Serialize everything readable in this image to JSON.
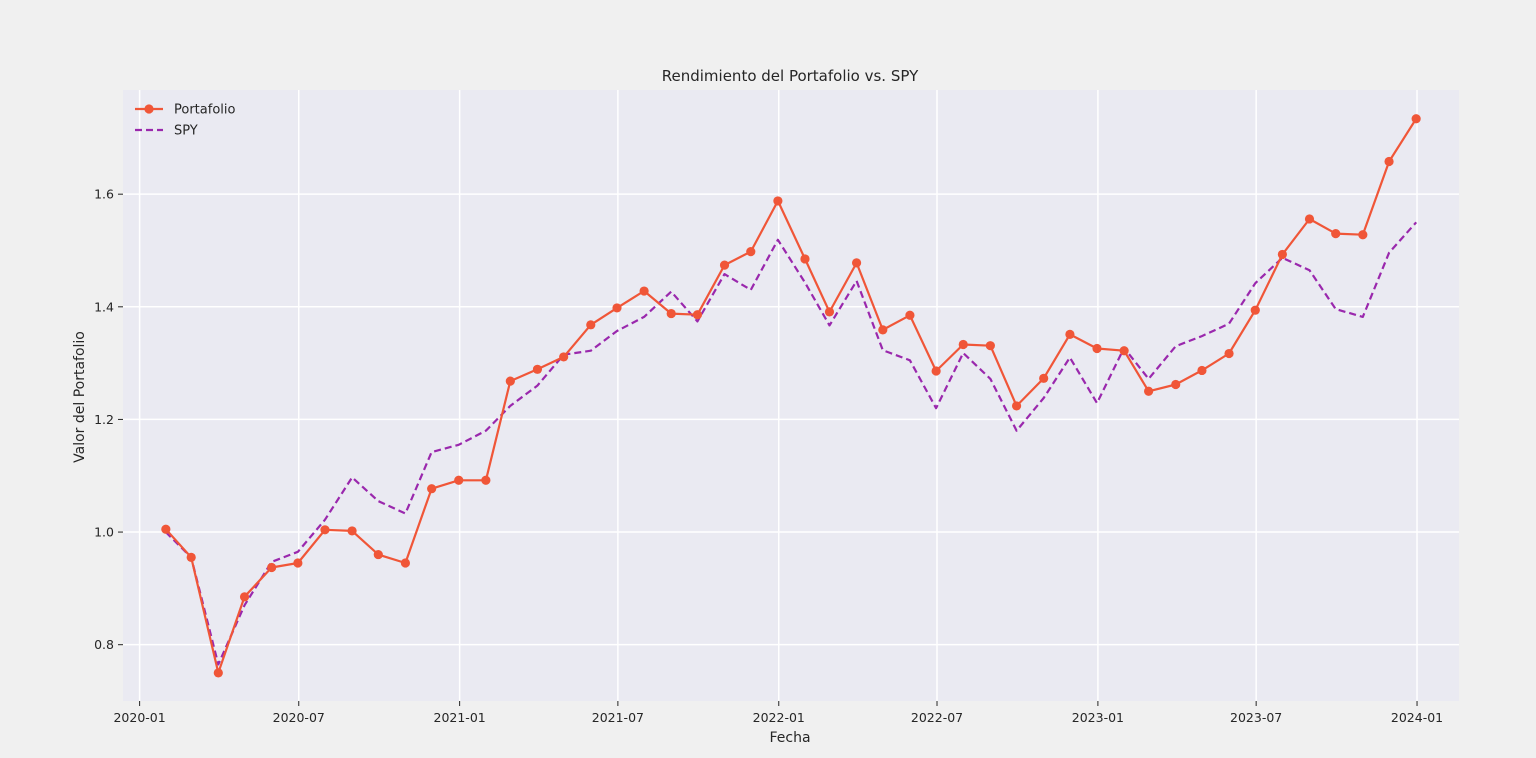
{
  "chart_data": {
    "type": "line",
    "title": "Rendimiento del Portafolio vs. SPY",
    "xlabel": "Fecha",
    "ylabel": "Valor del Portafolio",
    "legend_placement": "top-left",
    "grid": true,
    "xlim": [
      "2019-12-13",
      "2024-02-18"
    ],
    "ylim": [
      0.7,
      1.785
    ],
    "x_ticks": [
      "2020-01",
      "2020-07",
      "2021-01",
      "2021-07",
      "2022-01",
      "2022-07",
      "2023-01",
      "2023-07",
      "2024-01"
    ],
    "y_ticks": [
      "0.8",
      "1.0",
      "1.2",
      "1.4",
      "1.6"
    ],
    "x": [
      "2020-01-31",
      "2020-02-29",
      "2020-03-31",
      "2020-04-30",
      "2020-05-31",
      "2020-06-30",
      "2020-07-31",
      "2020-08-31",
      "2020-09-30",
      "2020-10-31",
      "2020-11-30",
      "2020-12-31",
      "2021-01-31",
      "2021-02-28",
      "2021-03-31",
      "2021-04-30",
      "2021-05-31",
      "2021-06-30",
      "2021-07-31",
      "2021-08-31",
      "2021-09-30",
      "2021-10-31",
      "2021-11-30",
      "2021-12-31",
      "2022-01-31",
      "2022-02-28",
      "2022-03-31",
      "2022-04-30",
      "2022-05-31",
      "2022-06-30",
      "2022-07-31",
      "2022-08-31",
      "2022-09-30",
      "2022-10-31",
      "2022-11-30",
      "2022-12-31",
      "2023-01-31",
      "2023-02-28",
      "2023-03-31",
      "2023-04-30",
      "2023-05-31",
      "2023-06-30",
      "2023-07-31",
      "2023-08-31",
      "2023-09-30",
      "2023-10-31",
      "2023-11-30",
      "2023-12-31"
    ],
    "series": [
      {
        "name": "Portafolio",
        "color": "#f05638",
        "style": "solid-marker",
        "values": [
          1.005,
          0.955,
          0.75,
          0.885,
          0.937,
          0.945,
          1.004,
          1.002,
          0.96,
          0.945,
          1.077,
          1.092,
          1.092,
          1.268,
          1.289,
          1.311,
          1.368,
          1.398,
          1.428,
          1.388,
          1.386,
          1.474,
          1.498,
          1.588,
          1.485,
          1.391,
          1.478,
          1.359,
          1.385,
          1.286,
          1.333,
          1.331,
          1.224,
          1.273,
          1.351,
          1.326,
          1.322,
          1.25,
          1.262,
          1.287,
          1.317,
          1.394,
          1.493,
          1.556,
          1.53,
          1.528,
          1.658,
          1.734
        ]
      },
      {
        "name": "SPY",
        "color": "#9a28ad",
        "style": "dashed",
        "values": [
          1.0,
          0.955,
          0.765,
          0.87,
          0.947,
          0.965,
          1.022,
          1.097,
          1.055,
          1.033,
          1.142,
          1.155,
          1.18,
          1.224,
          1.26,
          1.315,
          1.322,
          1.357,
          1.382,
          1.427,
          1.374,
          1.458,
          1.43,
          1.519,
          1.443,
          1.367,
          1.446,
          1.323,
          1.305,
          1.22,
          1.318,
          1.272,
          1.18,
          1.238,
          1.31,
          1.229,
          1.327,
          1.272,
          1.33,
          1.348,
          1.37,
          1.442,
          1.487,
          1.465,
          1.396,
          1.382,
          1.496,
          1.55
        ]
      }
    ]
  }
}
